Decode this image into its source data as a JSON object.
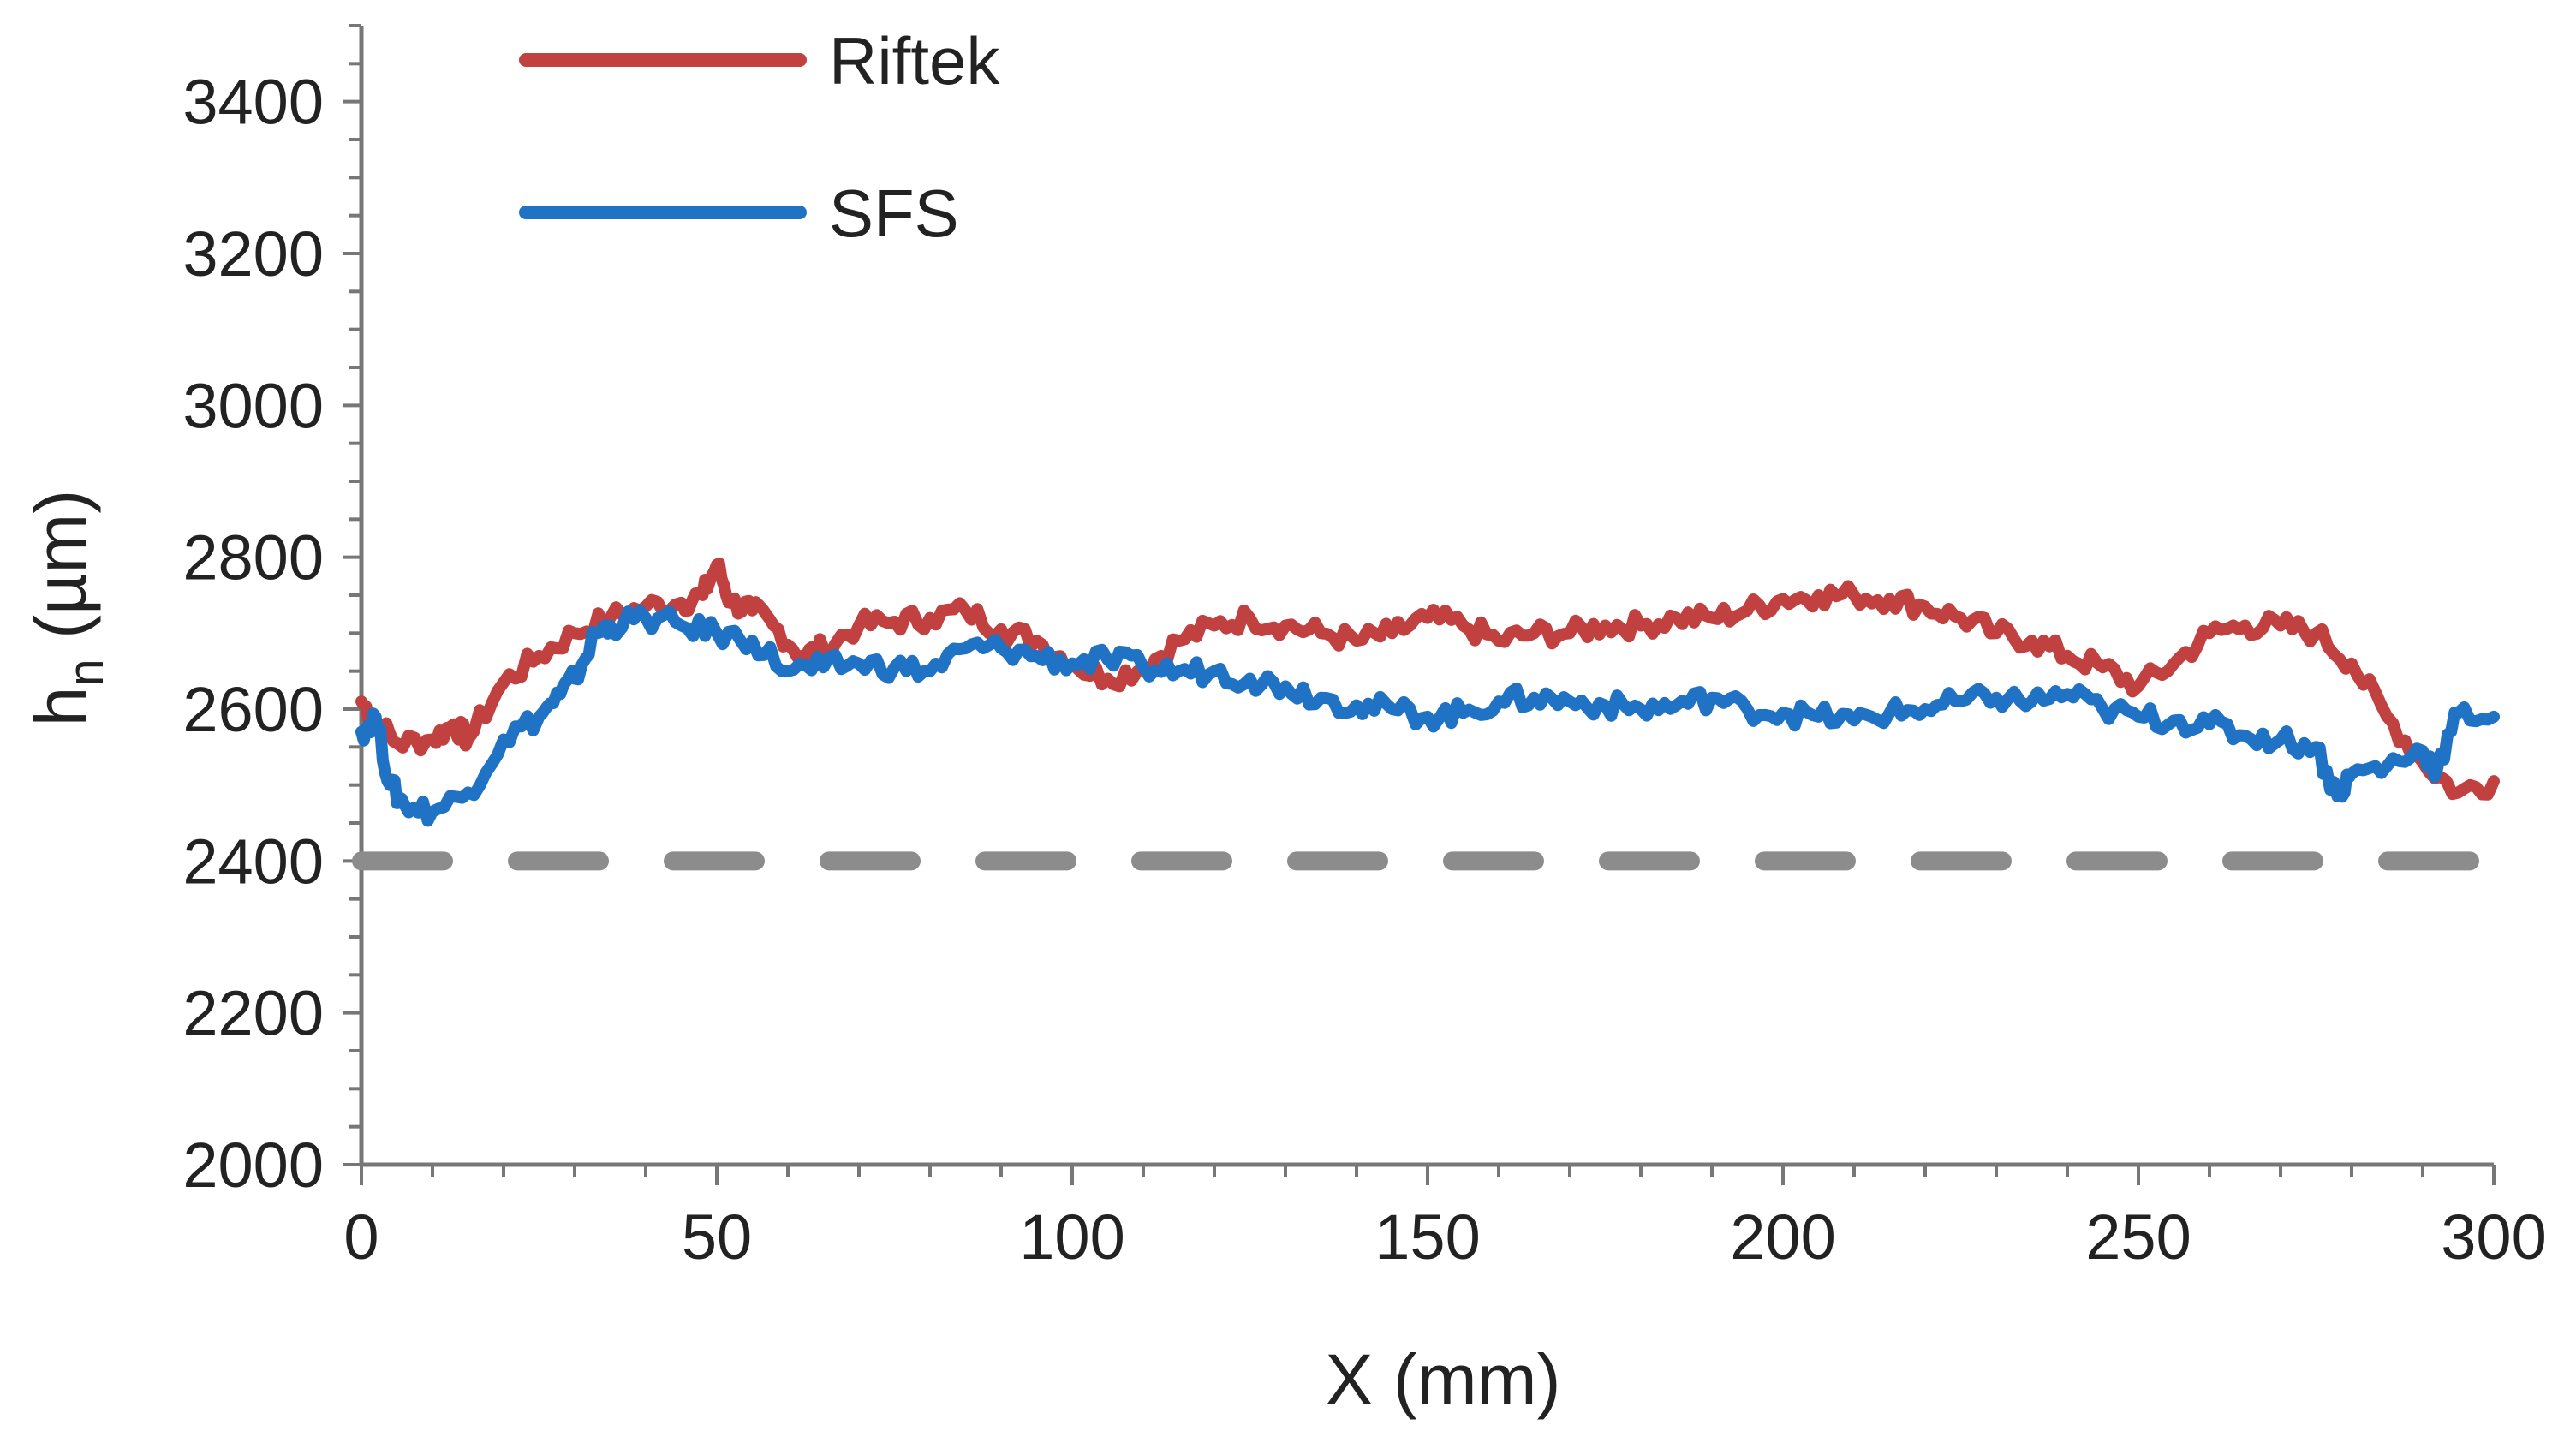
{
  "chart_data": {
    "type": "line",
    "title": "",
    "xlabel": "X (mm)",
    "ylabel": "h",
    "ylabel_sub": "n",
    "ylabel_unit": " (µm)",
    "xlim": [
      0,
      300
    ],
    "ylim": [
      2000,
      3500
    ],
    "x_ticks": [
      0,
      50,
      100,
      150,
      200,
      250,
      300
    ],
    "y_ticks": [
      2000,
      2200,
      2400,
      2600,
      2800,
      3000,
      3200,
      3400
    ],
    "legend_position": "top-left",
    "reference_line": {
      "y": 2400,
      "style": "dashed",
      "color": "#8c8c8c"
    },
    "series": [
      {
        "name": "Riftek",
        "color": "#c0413f",
        "x": [
          0,
          2,
          5,
          10,
          13,
          15,
          20,
          25,
          30,
          35,
          40,
          45,
          48,
          50,
          52,
          55,
          58,
          62,
          65,
          70,
          75,
          80,
          85,
          90,
          95,
          100,
          105,
          110,
          115,
          120,
          125,
          130,
          135,
          140,
          145,
          150,
          155,
          160,
          165,
          170,
          175,
          180,
          185,
          190,
          195,
          200,
          205,
          210,
          215,
          220,
          225,
          230,
          235,
          240,
          245,
          250,
          255,
          260,
          265,
          270,
          275,
          280,
          285,
          290,
          295,
          300
        ],
        "values": [
          2610,
          2585,
          2555,
          2560,
          2580,
          2560,
          2635,
          2670,
          2700,
          2720,
          2735,
          2740,
          2750,
          2790,
          2740,
          2730,
          2710,
          2670,
          2680,
          2710,
          2715,
          2720,
          2730,
          2705,
          2690,
          2660,
          2640,
          2655,
          2690,
          2710,
          2720,
          2710,
          2700,
          2690,
          2700,
          2720,
          2710,
          2690,
          2700,
          2700,
          2710,
          2710,
          2720,
          2720,
          2730,
          2745,
          2750,
          2750,
          2745,
          2735,
          2720,
          2700,
          2690,
          2670,
          2655,
          2630,
          2660,
          2700,
          2710,
          2710,
          2700,
          2660,
          2590,
          2530,
          2490,
          2505
        ]
      },
      {
        "name": "SFS",
        "color": "#1f72c4",
        "x": [
          0,
          2,
          4,
          6,
          10,
          15,
          20,
          25,
          28,
          30,
          33,
          35,
          40,
          45,
          50,
          55,
          60,
          65,
          70,
          75,
          80,
          85,
          90,
          95,
          100,
          105,
          110,
          115,
          120,
          125,
          130,
          135,
          140,
          145,
          150,
          155,
          160,
          165,
          170,
          175,
          180,
          185,
          190,
          195,
          200,
          205,
          210,
          215,
          220,
          225,
          230,
          235,
          240,
          245,
          250,
          255,
          260,
          265,
          270,
          275,
          278,
          280,
          285,
          290,
          292,
          295,
          300
        ],
        "values": [
          2570,
          2590,
          2500,
          2475,
          2465,
          2490,
          2560,
          2590,
          2620,
          2640,
          2700,
          2710,
          2720,
          2710,
          2700,
          2690,
          2650,
          2655,
          2660,
          2655,
          2650,
          2680,
          2680,
          2670,
          2660,
          2665,
          2655,
          2650,
          2650,
          2640,
          2630,
          2615,
          2605,
          2600,
          2590,
          2595,
          2610,
          2615,
          2610,
          2605,
          2600,
          2605,
          2615,
          2600,
          2595,
          2590,
          2585,
          2595,
          2600,
          2610,
          2615,
          2610,
          2620,
          2600,
          2590,
          2585,
          2580,
          2565,
          2560,
          2550,
          2485,
          2515,
          2525,
          2545,
          2520,
          2595,
          2590
        ]
      }
    ]
  }
}
